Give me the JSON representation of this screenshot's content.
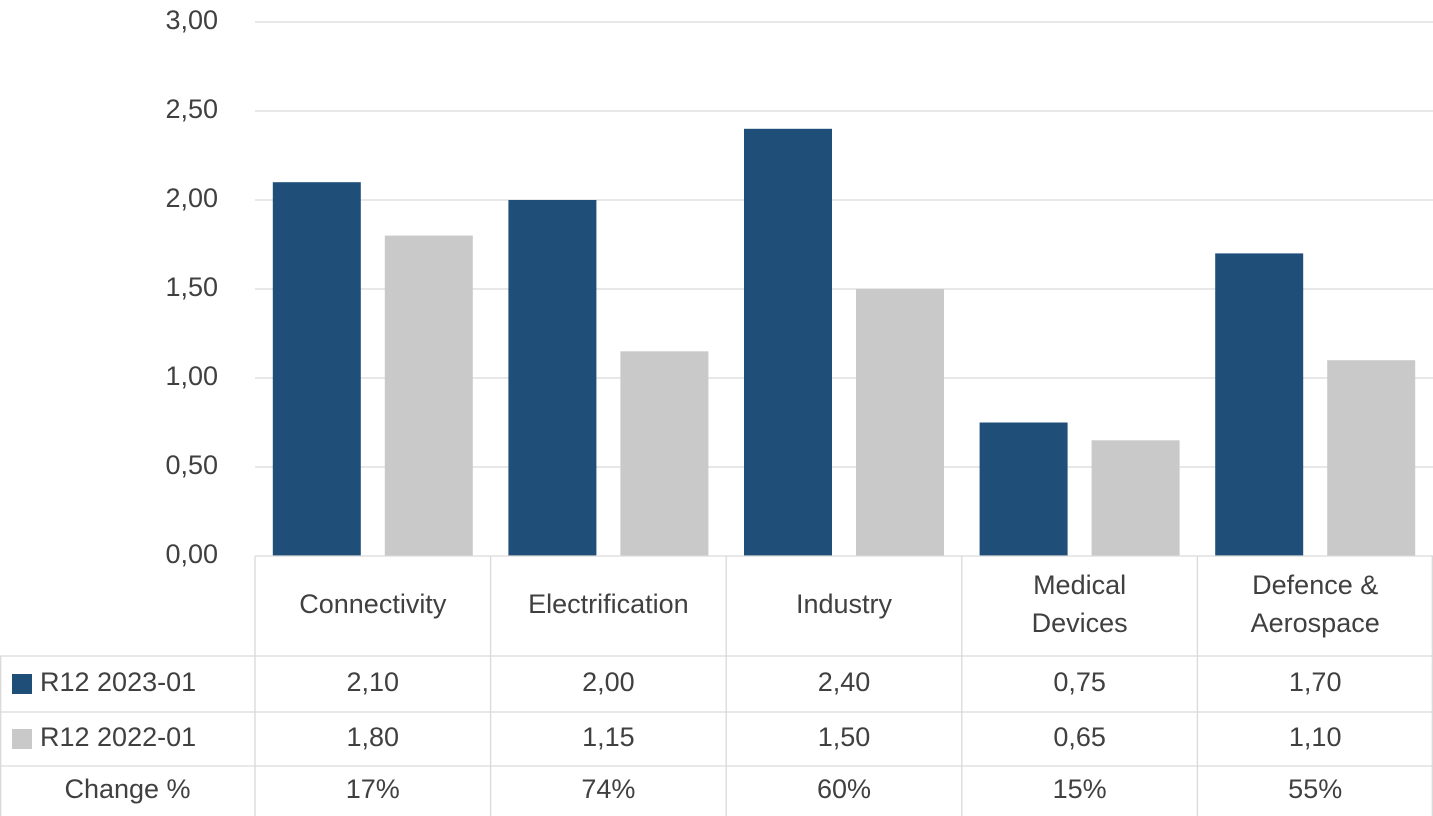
{
  "chart_data": {
    "type": "bar",
    "categories": [
      [
        "Connectivity"
      ],
      [
        "Electrification"
      ],
      [
        "Industry"
      ],
      [
        "Medical",
        "Devices"
      ],
      [
        "Defence &",
        "Aerospace"
      ]
    ],
    "series": [
      {
        "name": "R12 2023-01",
        "color": "#1f4e79",
        "values": [
          2.1,
          2.0,
          2.4,
          0.75,
          1.7
        ],
        "labels": [
          "2,10",
          "2,00",
          "2,40",
          "0,75",
          "1,70"
        ]
      },
      {
        "name": "R12 2022-01",
        "color": "#c9c9c9",
        "values": [
          1.8,
          1.15,
          1.5,
          0.65,
          1.1
        ],
        "labels": [
          "1,80",
          "1,15",
          "1,50",
          "0,65",
          "1,10"
        ]
      }
    ],
    "extra_row": {
      "name": "Change %",
      "values": [
        "17%",
        "74%",
        "60%",
        "15%",
        "55%"
      ]
    },
    "ylim": [
      0,
      3
    ],
    "yticks": [
      0,
      0.5,
      1,
      1.5,
      2,
      2.5,
      3
    ],
    "ytick_labels": [
      "0,00",
      "0,50",
      "1,00",
      "1,50",
      "2,00",
      "2,50",
      "3,00"
    ],
    "grid": true,
    "legend": "data-table"
  }
}
